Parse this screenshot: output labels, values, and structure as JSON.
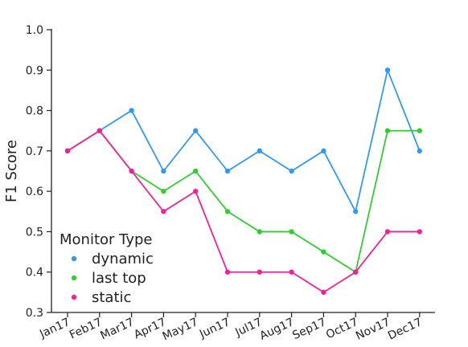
{
  "chart_data": {
    "type": "line",
    "categories": [
      "Jan17",
      "Feb17",
      "Mar17",
      "Apr17",
      "May17",
      "Jun17",
      "Jul17",
      "Aug17",
      "Sep17",
      "Oct17",
      "Nov17",
      "Dec17"
    ],
    "ylabel": "F1 Score",
    "xlabel": "",
    "ylim": [
      0.3,
      1.0
    ],
    "yticks": [
      "0.3",
      "0.4",
      "0.5",
      "0.6",
      "0.7",
      "0.8",
      "0.9",
      "1.0"
    ],
    "grid": false,
    "legend": {
      "title": "Monitor Type",
      "placement": "bottom-left"
    },
    "series": [
      {
        "name": "dynamic",
        "color": "#3399ee",
        "values": [
          0.7,
          0.75,
          0.8,
          0.65,
          0.75,
          0.65,
          0.7,
          0.65,
          0.7,
          0.55,
          0.9,
          0.7
        ]
      },
      {
        "name": "last top",
        "color": "#33cc33",
        "values": [
          0.7,
          0.75,
          0.65,
          0.6,
          0.65,
          0.55,
          0.5,
          0.5,
          0.45,
          0.4,
          0.75,
          0.75
        ]
      },
      {
        "name": "static",
        "color": "#ee2299",
        "values": [
          0.7,
          0.75,
          0.65,
          0.55,
          0.6,
          0.4,
          0.4,
          0.4,
          0.35,
          0.4,
          0.5,
          0.5
        ]
      }
    ]
  }
}
